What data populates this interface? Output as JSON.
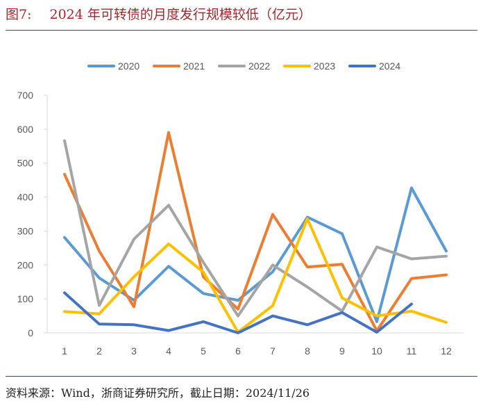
{
  "figure": {
    "label": "图7:",
    "title": "2024 年可转债的月度发行规模较低（亿元）",
    "source": "资料来源：Wind，浙商证券研究所，截止日期：2024/11/26"
  },
  "chart_data": {
    "type": "line",
    "title": "",
    "xlabel": "",
    "ylabel": "",
    "categories": [
      "1",
      "2",
      "3",
      "4",
      "5",
      "6",
      "7",
      "8",
      "9",
      "10",
      "11",
      "12"
    ],
    "ylim": [
      0,
      700
    ],
    "yticks": [
      0,
      100,
      200,
      300,
      400,
      500,
      600,
      700
    ],
    "grid": false,
    "legend": "top",
    "series": [
      {
        "name": "2020",
        "color": "#5b9bd5",
        "values": [
          281,
          162,
          96,
          196,
          116,
          96,
          180,
          341,
          292,
          33,
          427,
          241
        ]
      },
      {
        "name": "2021",
        "color": "#ed7d31",
        "values": [
          467,
          241,
          77,
          590,
          165,
          70,
          349,
          194,
          202,
          6,
          160,
          171
        ]
      },
      {
        "name": "2022",
        "color": "#a5a5a5",
        "values": [
          566,
          81,
          276,
          376,
          208,
          50,
          200,
          135,
          64,
          253,
          218,
          226
        ]
      },
      {
        "name": "2023",
        "color": "#ffc000",
        "values": [
          63,
          56,
          165,
          262,
          179,
          2,
          80,
          336,
          103,
          50,
          64,
          31
        ]
      },
      {
        "name": "2024",
        "color": "#4472c4",
        "values": [
          118,
          26,
          24,
          7,
          33,
          0,
          50,
          24,
          60,
          2,
          85,
          null
        ]
      }
    ]
  }
}
